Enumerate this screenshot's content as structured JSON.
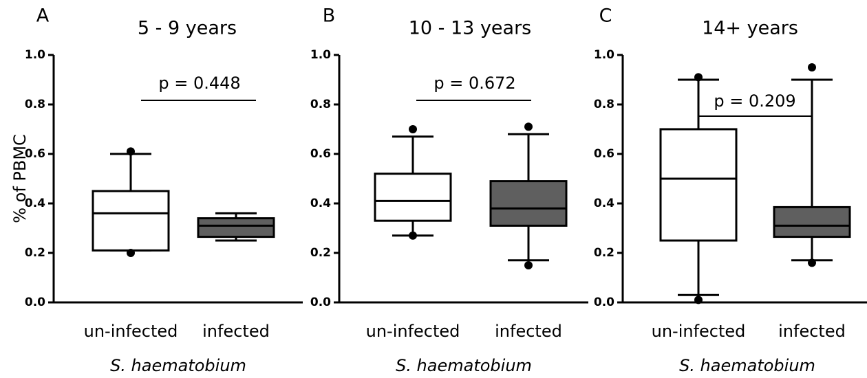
{
  "chart_data": [
    {
      "type": "box",
      "panel_label": "A",
      "title": "5 - 9 years",
      "ylabel": "% of PBMC",
      "xlabel": "S. haematobium",
      "categories": [
        "un-infected",
        "infected"
      ],
      "colors": [
        "#ffffff",
        "#5f5f5f"
      ],
      "whisker_low": [
        0.21,
        0.25
      ],
      "q1": [
        0.21,
        0.265
      ],
      "median": [
        0.36,
        0.31
      ],
      "q3": [
        0.45,
        0.34
      ],
      "whisker_high": [
        0.6,
        0.36
      ],
      "outliers": [
        [
          0.61,
          0.2
        ],
        []
      ],
      "annotation": "p = 0.448",
      "ylim": [
        0,
        1
      ],
      "yticks": [
        {
          "value": 0,
          "label": "0.0"
        },
        {
          "value": 0.2,
          "label": "0.2"
        },
        {
          "value": 0.4,
          "label": "0.4"
        },
        {
          "value": 0.6,
          "label": "0.6"
        },
        {
          "value": 0.8,
          "label": "0.8"
        },
        {
          "value": 1,
          "label": "1.0"
        }
      ]
    },
    {
      "type": "box",
      "panel_label": "B",
      "title": "10 - 13 years",
      "xlabel": "S. haematobium",
      "categories": [
        "un-infected",
        "infected"
      ],
      "colors": [
        "#ffffff",
        "#5f5f5f"
      ],
      "whisker_low": [
        0.27,
        0.17
      ],
      "q1": [
        0.33,
        0.31
      ],
      "median": [
        0.41,
        0.38
      ],
      "q3": [
        0.52,
        0.49
      ],
      "whisker_high": [
        0.67,
        0.68
      ],
      "outliers": [
        [
          0.7,
          0.27
        ],
        [
          0.71,
          0.15
        ]
      ],
      "annotation": "p = 0.672",
      "ylim": [
        0,
        1
      ],
      "yticks": [
        {
          "value": 0,
          "label": "0.0"
        },
        {
          "value": 0.2,
          "label": "0.2"
        },
        {
          "value": 0.4,
          "label": "0.4"
        },
        {
          "value": 0.6,
          "label": "0.6"
        },
        {
          "value": 0.8,
          "label": "0.8"
        },
        {
          "value": 1,
          "label": "1.0"
        }
      ]
    },
    {
      "type": "box",
      "panel_label": "C",
      "title": "14+ years",
      "xlabel": "S. haematobium",
      "categories": [
        "un-infected",
        "infected"
      ],
      "colors": [
        "#ffffff",
        "#5f5f5f"
      ],
      "whisker_low": [
        0.03,
        0.17
      ],
      "q1": [
        0.25,
        0.265
      ],
      "median": [
        0.5,
        0.31
      ],
      "q3": [
        0.7,
        0.385
      ],
      "whisker_high": [
        0.9,
        0.9
      ],
      "outliers": [
        [
          0.91,
          0.01
        ],
        [
          0.95,
          0.16
        ]
      ],
      "annotation": "p = 0.209",
      "ylim": [
        0,
        1
      ],
      "yticks": [
        {
          "value": 0,
          "label": "0.0"
        },
        {
          "value": 0.2,
          "label": "0.2"
        },
        {
          "value": 0.4,
          "label": "0.4"
        },
        {
          "value": 0.6,
          "label": "0.6"
        },
        {
          "value": 0.8,
          "label": "0.8"
        },
        {
          "value": 1,
          "label": "1.0"
        }
      ]
    }
  ]
}
